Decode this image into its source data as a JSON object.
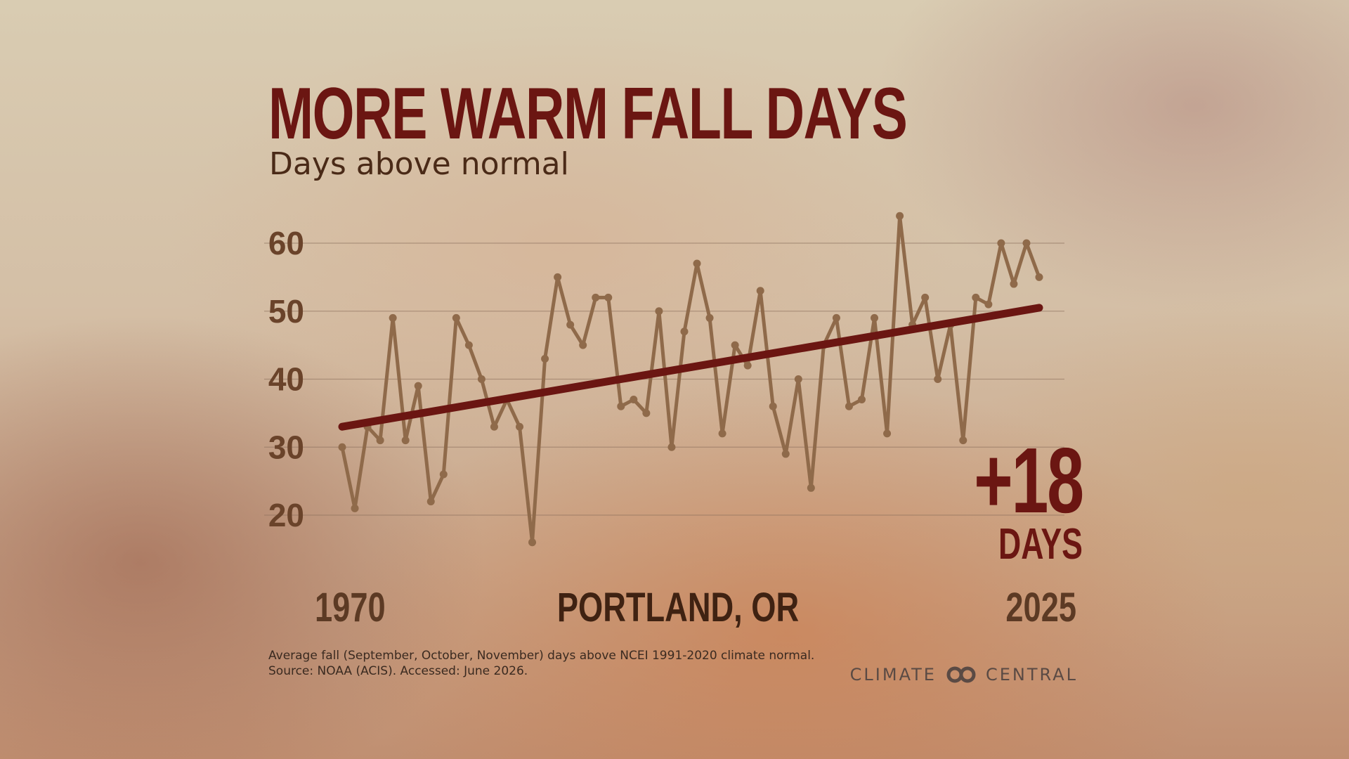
{
  "header": {
    "title": "MORE WARM FALL DAYS",
    "subtitle": "Days above normal"
  },
  "location": "PORTLAND, OR",
  "change": {
    "value": "+18",
    "unit": "DAYS"
  },
  "footnote": {
    "line1": "Average fall (September, October, November) days above NCEI 1991-2020 climate normal.",
    "line2": "Source: NOAA (ACIS). Accessed: June 2026."
  },
  "brand": {
    "left": "CLIMATE",
    "right": "CENTRAL"
  },
  "colors": {
    "title": "#6b1612",
    "trend": "#6b1612",
    "series": "#8f6a4a",
    "gridline": "#8a6f5c"
  },
  "chart_data": {
    "type": "line",
    "title": "MORE WARM FALL DAYS",
    "subtitle": "Days above normal",
    "x_start_label": "1970",
    "x_end_label": "2025",
    "xlim": [
      1970,
      2025
    ],
    "ylim": [
      15,
      65
    ],
    "yticks": [
      20,
      30,
      40,
      50,
      60
    ],
    "grid": true,
    "x": [
      1970,
      1971,
      1972,
      1973,
      1974,
      1975,
      1976,
      1977,
      1978,
      1979,
      1980,
      1981,
      1982,
      1983,
      1984,
      1985,
      1986,
      1987,
      1988,
      1989,
      1990,
      1991,
      1992,
      1993,
      1994,
      1995,
      1996,
      1997,
      1998,
      1999,
      2000,
      2001,
      2002,
      2003,
      2004,
      2005,
      2006,
      2007,
      2008,
      2009,
      2010,
      2011,
      2012,
      2013,
      2014,
      2015,
      2016,
      2017,
      2018,
      2019,
      2020,
      2021,
      2022,
      2023,
      2024,
      2025
    ],
    "series": [
      {
        "values": [
          30,
          21,
          33,
          31,
          49,
          31,
          39,
          22,
          26,
          49,
          45,
          40,
          33,
          37,
          33,
          16,
          43,
          55,
          48,
          45,
          52,
          52,
          36,
          37,
          35,
          50,
          30,
          47,
          57,
          49,
          32,
          45,
          42,
          53,
          36,
          29,
          40,
          24,
          45,
          49,
          36,
          37,
          49,
          32,
          64,
          48,
          52,
          40,
          48,
          31,
          52,
          51,
          60,
          54,
          60,
          55
        ]
      }
    ],
    "trend": {
      "start": 33,
      "end": 50.5
    }
  }
}
